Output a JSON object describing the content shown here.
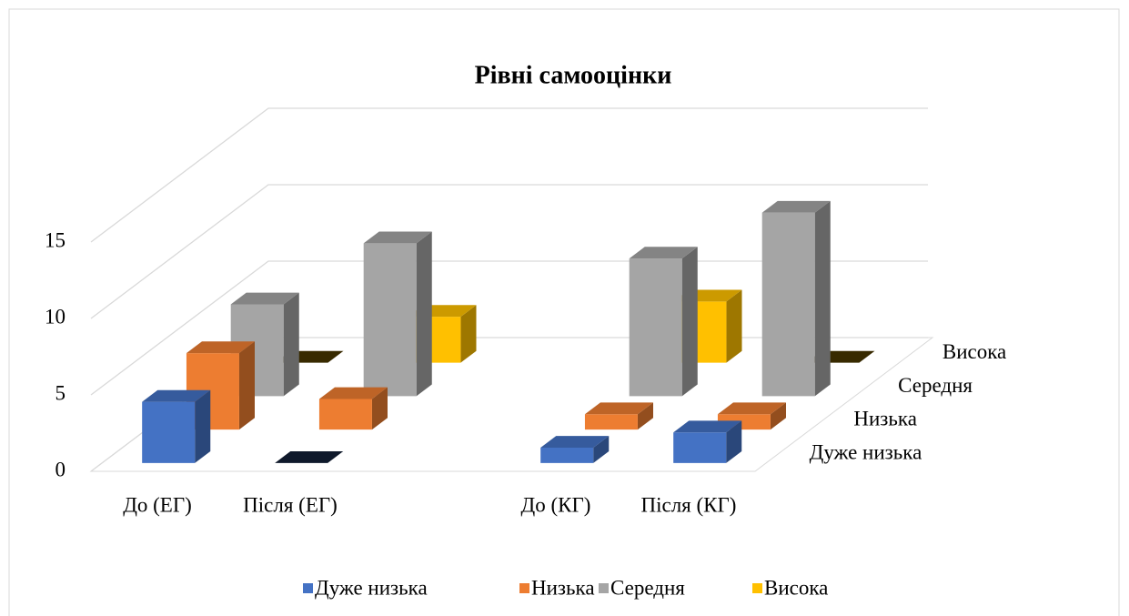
{
  "chart_data": {
    "type": "bar3d",
    "title": "Рівні самооцінки",
    "categories": [
      "До (ЕГ)",
      "Після (ЕГ)",
      null,
      "До (КГ)",
      "Після (КГ)"
    ],
    "series": [
      {
        "name": "Дуже низька",
        "color": "#4472c4",
        "values": [
          4,
          0,
          null,
          1,
          2
        ]
      },
      {
        "name": "Низька",
        "color": "#ed7d31",
        "values": [
          5,
          2,
          null,
          1,
          1
        ]
      },
      {
        "name": "Середня",
        "color": "#a5a5a5",
        "values": [
          6,
          10,
          null,
          9,
          12
        ]
      },
      {
        "name": "Висока",
        "color": "#ffc000",
        "values": [
          0,
          3,
          null,
          4,
          0
        ]
      }
    ],
    "ylim": [
      0,
      15
    ],
    "yticks": [
      0,
      5,
      10,
      15
    ],
    "grid": true,
    "legend": "bottom"
  }
}
